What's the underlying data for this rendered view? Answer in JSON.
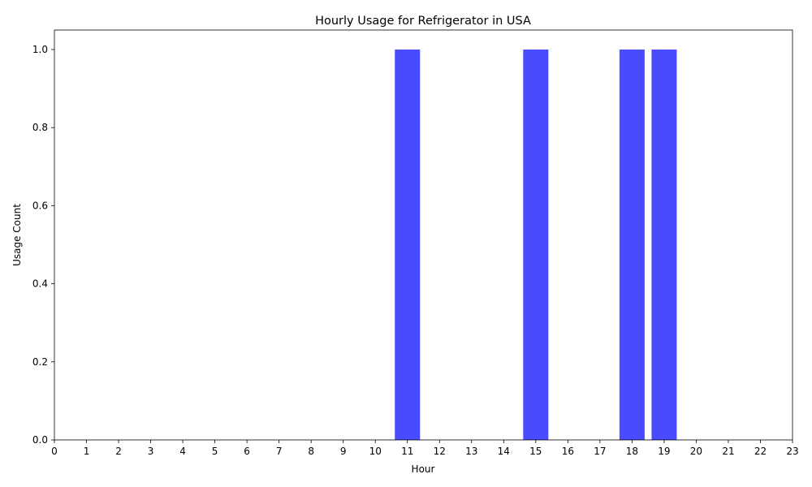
{
  "chart_data": {
    "type": "bar",
    "title": "Hourly Usage for Refrigerator in USA",
    "xlabel": "Hour",
    "ylabel": "Usage Count",
    "categories": [
      "0",
      "1",
      "2",
      "3",
      "4",
      "5",
      "6",
      "7",
      "8",
      "9",
      "10",
      "11",
      "12",
      "13",
      "14",
      "15",
      "16",
      "17",
      "18",
      "19",
      "20",
      "21",
      "22",
      "23"
    ],
    "bars": [
      {
        "x": 11,
        "value": 1.0
      },
      {
        "x": 15,
        "value": 1.0
      },
      {
        "x": 18,
        "value": 1.0
      },
      {
        "x": 19,
        "value": 1.0
      }
    ],
    "ylim": [
      0,
      1.05
    ],
    "yticks": [
      0.0,
      0.2,
      0.4,
      0.6,
      0.8,
      1.0
    ],
    "ytick_labels": [
      "0.0",
      "0.2",
      "0.4",
      "0.6",
      "0.8",
      "1.0"
    ],
    "grid": false,
    "legend": "none",
    "bar_color": "#4a4aff"
  }
}
